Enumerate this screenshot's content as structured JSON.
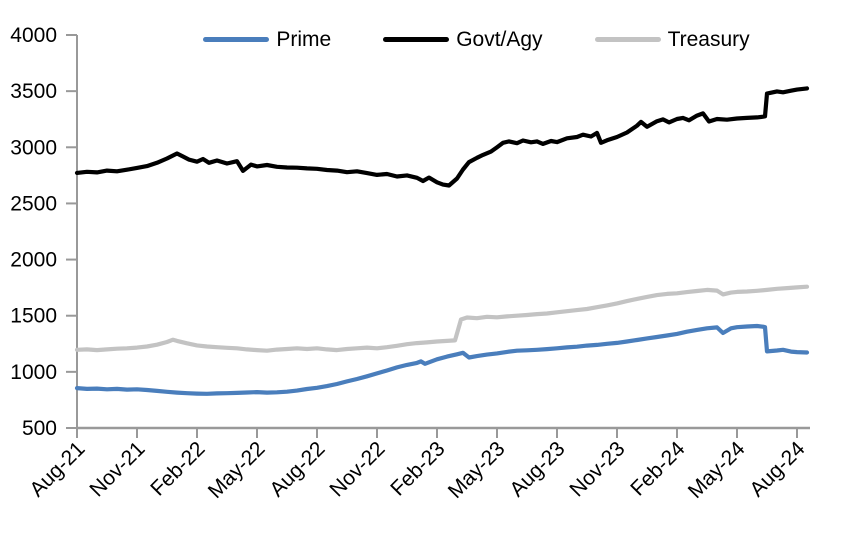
{
  "chart_data": {
    "type": "line",
    "title": "",
    "xlabel": "",
    "ylabel": "",
    "x_unit": "months since Aug-2021",
    "xlim": [
      0,
      36.65
    ],
    "ylim": [
      500,
      4000
    ],
    "y_ticks": [
      500,
      1000,
      1500,
      2000,
      2500,
      3000,
      3500,
      4000
    ],
    "x_tick_positions": [
      0,
      3,
      6,
      9,
      12,
      15,
      18,
      21,
      24,
      27,
      30,
      33,
      36
    ],
    "x_tick_labels": [
      "Aug-21",
      "Nov-21",
      "Feb-22",
      "May-22",
      "Aug-22",
      "Nov-22",
      "Feb-23",
      "May-23",
      "Aug-23",
      "Nov-23",
      "Feb-24",
      "May-24",
      "Aug-24"
    ],
    "grid": false,
    "legend_position": "top",
    "axis_color": "#999999",
    "text_color": "#000000",
    "line_width": 4.2,
    "series": [
      {
        "name": "Prime",
        "color": "#4a7ebc",
        "points": [
          [
            0,
            855
          ],
          [
            0.5,
            848
          ],
          [
            1,
            851
          ],
          [
            1.5,
            845
          ],
          [
            2,
            848
          ],
          [
            2.5,
            842
          ],
          [
            3,
            845
          ],
          [
            3.5,
            838
          ],
          [
            4,
            830
          ],
          [
            4.5,
            822
          ],
          [
            5,
            815
          ],
          [
            5.5,
            810
          ],
          [
            6,
            806
          ],
          [
            6.5,
            805
          ],
          [
            7,
            808
          ],
          [
            7.5,
            810
          ],
          [
            8,
            813
          ],
          [
            8.5,
            816
          ],
          [
            9,
            820
          ],
          [
            9.5,
            815
          ],
          [
            10,
            818
          ],
          [
            10.5,
            823
          ],
          [
            11,
            833
          ],
          [
            11.5,
            847
          ],
          [
            12,
            858
          ],
          [
            12.5,
            873
          ],
          [
            13,
            892
          ],
          [
            13.5,
            915
          ],
          [
            14,
            936
          ],
          [
            14.5,
            960
          ],
          [
            15,
            986
          ],
          [
            15.5,
            1012
          ],
          [
            16,
            1040
          ],
          [
            16.5,
            1062
          ],
          [
            17,
            1080
          ],
          [
            17.2,
            1093
          ],
          [
            17.4,
            1072
          ],
          [
            18,
            1112
          ],
          [
            18.5,
            1136
          ],
          [
            19,
            1156
          ],
          [
            19.3,
            1170
          ],
          [
            19.6,
            1128
          ],
          [
            20,
            1140
          ],
          [
            20.5,
            1154
          ],
          [
            21,
            1164
          ],
          [
            21.5,
            1178
          ],
          [
            22,
            1188
          ],
          [
            22.5,
            1192
          ],
          [
            23,
            1196
          ],
          [
            23.5,
            1203
          ],
          [
            24,
            1210
          ],
          [
            24.5,
            1218
          ],
          [
            25,
            1224
          ],
          [
            25.5,
            1234
          ],
          [
            26,
            1240
          ],
          [
            26.5,
            1250
          ],
          [
            27,
            1258
          ],
          [
            27.5,
            1270
          ],
          [
            28,
            1284
          ],
          [
            28.5,
            1298
          ],
          [
            29,
            1310
          ],
          [
            29.5,
            1324
          ],
          [
            30,
            1338
          ],
          [
            30.5,
            1358
          ],
          [
            31,
            1374
          ],
          [
            31.5,
            1388
          ],
          [
            32,
            1396
          ],
          [
            32.3,
            1346
          ],
          [
            32.7,
            1388
          ],
          [
            33,
            1398
          ],
          [
            33.5,
            1404
          ],
          [
            34,
            1408
          ],
          [
            34.3,
            1402
          ],
          [
            34.4,
            1398
          ],
          [
            34.5,
            1182
          ],
          [
            35,
            1190
          ],
          [
            35.3,
            1196
          ],
          [
            35.7,
            1180
          ],
          [
            36,
            1176
          ],
          [
            36.5,
            1172
          ]
        ]
      },
      {
        "name": "Govt/Agy",
        "color": "#000000",
        "points": [
          [
            0,
            2772
          ],
          [
            0.5,
            2782
          ],
          [
            1,
            2776
          ],
          [
            1.5,
            2792
          ],
          [
            2,
            2786
          ],
          [
            2.5,
            2800
          ],
          [
            3,
            2816
          ],
          [
            3.5,
            2832
          ],
          [
            4,
            2862
          ],
          [
            4.5,
            2900
          ],
          [
            5,
            2945
          ],
          [
            5.3,
            2918
          ],
          [
            5.6,
            2890
          ],
          [
            6,
            2872
          ],
          [
            6.3,
            2896
          ],
          [
            6.6,
            2862
          ],
          [
            7,
            2882
          ],
          [
            7.5,
            2856
          ],
          [
            8,
            2876
          ],
          [
            8.3,
            2790
          ],
          [
            8.7,
            2846
          ],
          [
            9,
            2830
          ],
          [
            9.5,
            2842
          ],
          [
            10,
            2826
          ],
          [
            10.5,
            2820
          ],
          [
            11,
            2818
          ],
          [
            11.5,
            2812
          ],
          [
            12,
            2808
          ],
          [
            12.5,
            2798
          ],
          [
            13,
            2792
          ],
          [
            13.5,
            2778
          ],
          [
            14,
            2786
          ],
          [
            14.5,
            2770
          ],
          [
            15,
            2754
          ],
          [
            15.5,
            2762
          ],
          [
            16,
            2740
          ],
          [
            16.5,
            2750
          ],
          [
            17,
            2728
          ],
          [
            17.3,
            2700
          ],
          [
            17.6,
            2730
          ],
          [
            18,
            2688
          ],
          [
            18.3,
            2668
          ],
          [
            18.6,
            2660
          ],
          [
            19,
            2722
          ],
          [
            19.3,
            2802
          ],
          [
            19.6,
            2868
          ],
          [
            20,
            2906
          ],
          [
            20.3,
            2932
          ],
          [
            20.7,
            2962
          ],
          [
            21,
            3000
          ],
          [
            21.3,
            3040
          ],
          [
            21.6,
            3052
          ],
          [
            22,
            3036
          ],
          [
            22.3,
            3060
          ],
          [
            22.7,
            3044
          ],
          [
            23,
            3052
          ],
          [
            23.3,
            3030
          ],
          [
            23.7,
            3056
          ],
          [
            24,
            3046
          ],
          [
            24.5,
            3080
          ],
          [
            25,
            3092
          ],
          [
            25.3,
            3112
          ],
          [
            25.7,
            3096
          ],
          [
            26,
            3128
          ],
          [
            26.2,
            3040
          ],
          [
            26.5,
            3062
          ],
          [
            27,
            3092
          ],
          [
            27.5,
            3132
          ],
          [
            28,
            3192
          ],
          [
            28.2,
            3226
          ],
          [
            28.5,
            3182
          ],
          [
            29,
            3232
          ],
          [
            29.3,
            3248
          ],
          [
            29.6,
            3222
          ],
          [
            30,
            3252
          ],
          [
            30.3,
            3262
          ],
          [
            30.6,
            3240
          ],
          [
            31,
            3282
          ],
          [
            31.3,
            3302
          ],
          [
            31.6,
            3230
          ],
          [
            32,
            3252
          ],
          [
            32.5,
            3246
          ],
          [
            33,
            3256
          ],
          [
            33.5,
            3262
          ],
          [
            34,
            3266
          ],
          [
            34.3,
            3272
          ],
          [
            34.4,
            3276
          ],
          [
            34.5,
            3478
          ],
          [
            35,
            3498
          ],
          [
            35.3,
            3490
          ],
          [
            35.7,
            3504
          ],
          [
            36,
            3514
          ],
          [
            36.5,
            3524
          ]
        ]
      },
      {
        "name": "Treasury",
        "color": "#c3c3c3",
        "points": [
          [
            0,
            1196
          ],
          [
            0.5,
            1200
          ],
          [
            1,
            1194
          ],
          [
            1.5,
            1200
          ],
          [
            2,
            1206
          ],
          [
            2.5,
            1210
          ],
          [
            3,
            1216
          ],
          [
            3.5,
            1226
          ],
          [
            4,
            1242
          ],
          [
            4.5,
            1266
          ],
          [
            4.8,
            1286
          ],
          [
            5,
            1276
          ],
          [
            5.5,
            1254
          ],
          [
            6,
            1236
          ],
          [
            6.5,
            1226
          ],
          [
            7,
            1220
          ],
          [
            7.5,
            1214
          ],
          [
            8,
            1210
          ],
          [
            8.5,
            1200
          ],
          [
            9,
            1194
          ],
          [
            9.5,
            1188
          ],
          [
            10,
            1198
          ],
          [
            10.5,
            1204
          ],
          [
            11,
            1210
          ],
          [
            11.5,
            1204
          ],
          [
            12,
            1210
          ],
          [
            12.5,
            1200
          ],
          [
            13,
            1194
          ],
          [
            13.5,
            1204
          ],
          [
            14,
            1210
          ],
          [
            14.5,
            1216
          ],
          [
            15,
            1210
          ],
          [
            15.5,
            1220
          ],
          [
            16,
            1232
          ],
          [
            16.5,
            1246
          ],
          [
            17,
            1256
          ],
          [
            17.5,
            1262
          ],
          [
            18,
            1270
          ],
          [
            18.5,
            1276
          ],
          [
            18.9,
            1280
          ],
          [
            19.2,
            1466
          ],
          [
            19.5,
            1484
          ],
          [
            20,
            1478
          ],
          [
            20.5,
            1490
          ],
          [
            21,
            1486
          ],
          [
            21.5,
            1494
          ],
          [
            22,
            1500
          ],
          [
            22.5,
            1506
          ],
          [
            23,
            1514
          ],
          [
            23.5,
            1520
          ],
          [
            24,
            1530
          ],
          [
            24.5,
            1540
          ],
          [
            25,
            1550
          ],
          [
            25.5,
            1560
          ],
          [
            26,
            1576
          ],
          [
            26.5,
            1592
          ],
          [
            27,
            1610
          ],
          [
            27.5,
            1630
          ],
          [
            28,
            1650
          ],
          [
            28.5,
            1668
          ],
          [
            29,
            1684
          ],
          [
            29.5,
            1694
          ],
          [
            30,
            1700
          ],
          [
            30.5,
            1710
          ],
          [
            31,
            1720
          ],
          [
            31.5,
            1730
          ],
          [
            32,
            1724
          ],
          [
            32.3,
            1690
          ],
          [
            32.7,
            1706
          ],
          [
            33,
            1712
          ],
          [
            33.5,
            1716
          ],
          [
            34,
            1722
          ],
          [
            34.5,
            1730
          ],
          [
            35,
            1740
          ],
          [
            35.5,
            1746
          ],
          [
            36,
            1752
          ],
          [
            36.5,
            1758
          ]
        ]
      }
    ]
  }
}
